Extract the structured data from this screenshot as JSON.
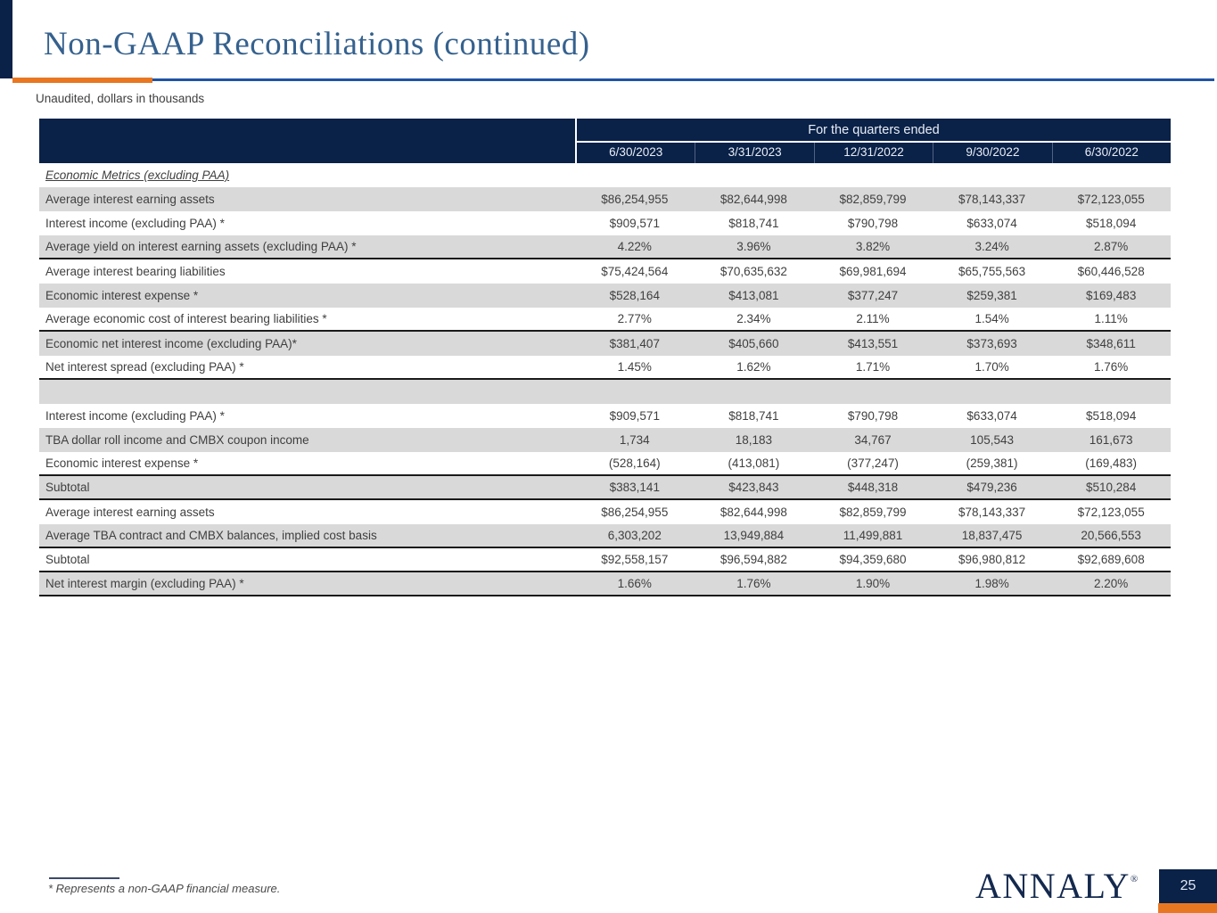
{
  "slide": {
    "title": "Non-GAAP Reconciliations (continued)",
    "subtitle": "Unaudited, dollars in thousands",
    "footnote": "* Represents a non-GAAP financial measure.",
    "logo_text": "ANNALY",
    "logo_mark": "®",
    "page_number": "25"
  },
  "colors": {
    "navy": "#0a2148",
    "orange": "#e87722",
    "title_blue": "#35618e",
    "row_gray": "#d9d9d9",
    "body_text": "#3f3f3f",
    "rule_blue": "#2053a4"
  },
  "table": {
    "group_header": "For the quarters ended",
    "columns": [
      "6/30/2023",
      "3/31/2023",
      "12/31/2022",
      "9/30/2022",
      "6/30/2022"
    ],
    "rows": [
      {
        "type": "section",
        "label": "Economic Metrics (excluding PAA)",
        "values": [
          "",
          "",
          "",
          "",
          ""
        ],
        "shade": "white",
        "divider_below": false
      },
      {
        "type": "data",
        "label": "Average interest earning assets",
        "values": [
          "$86,254,955",
          "$82,644,998",
          "$82,859,799",
          "$78,143,337",
          "$72,123,055"
        ],
        "shade": "gray",
        "divider_below": false
      },
      {
        "type": "data",
        "label": "Interest income (excluding PAA) *",
        "values": [
          "$909,571",
          "$818,741",
          "$790,798",
          "$633,074",
          "$518,094"
        ],
        "shade": "white",
        "divider_below": false
      },
      {
        "type": "data",
        "label": "Average yield on interest earning assets (excluding PAA) *",
        "values": [
          "4.22%",
          "3.96%",
          "3.82%",
          "3.24%",
          "2.87%"
        ],
        "shade": "gray",
        "divider_below": true
      },
      {
        "type": "data",
        "label": "Average interest bearing liabilities",
        "values": [
          "$75,424,564",
          "$70,635,632",
          "$69,981,694",
          "$65,755,563",
          "$60,446,528"
        ],
        "shade": "white",
        "divider_below": false
      },
      {
        "type": "data",
        "label": "Economic interest expense *",
        "values": [
          "$528,164",
          "$413,081",
          "$377,247",
          "$259,381",
          "$169,483"
        ],
        "shade": "gray",
        "divider_below": false
      },
      {
        "type": "data",
        "label": "Average economic cost of interest bearing liabilities *",
        "values": [
          "2.77%",
          "2.34%",
          "2.11%",
          "1.54%",
          "1.11%"
        ],
        "shade": "white",
        "divider_below": true
      },
      {
        "type": "data",
        "label": "Economic net interest income (excluding PAA)*",
        "values": [
          "$381,407",
          "$405,660",
          "$413,551",
          "$373,693",
          "$348,611"
        ],
        "shade": "gray",
        "divider_below": false
      },
      {
        "type": "data",
        "label": "Net interest spread (excluding PAA) *",
        "values": [
          "1.45%",
          "1.62%",
          "1.71%",
          "1.70%",
          "1.76%"
        ],
        "shade": "white",
        "divider_below": true
      },
      {
        "type": "spacer",
        "label": "",
        "values": [
          "",
          "",
          "",
          "",
          ""
        ],
        "shade": "gray",
        "divider_below": false
      },
      {
        "type": "data",
        "label": "Interest income (excluding PAA) *",
        "values": [
          "$909,571",
          "$818,741",
          "$790,798",
          "$633,074",
          "$518,094"
        ],
        "shade": "white",
        "divider_below": false
      },
      {
        "type": "data",
        "label": "TBA dollar roll income and CMBX coupon income",
        "values": [
          "1,734",
          "18,183",
          "34,767",
          "105,543",
          "161,673"
        ],
        "shade": "gray",
        "divider_below": false
      },
      {
        "type": "data",
        "label": "Economic interest expense *",
        "values": [
          "(528,164)",
          "(413,081)",
          "(377,247)",
          "(259,381)",
          "(169,483)"
        ],
        "shade": "white",
        "divider_below": true
      },
      {
        "type": "data",
        "label": "Subtotal",
        "values": [
          "$383,141",
          "$423,843",
          "$448,318",
          "$479,236",
          "$510,284"
        ],
        "shade": "gray",
        "divider_below": true
      },
      {
        "type": "data",
        "label": "Average interest earning assets",
        "values": [
          "$86,254,955",
          "$82,644,998",
          "$82,859,799",
          "$78,143,337",
          "$72,123,055"
        ],
        "shade": "white",
        "divider_below": false
      },
      {
        "type": "data",
        "label": "Average TBA contract and CMBX balances, implied cost basis",
        "values": [
          "6,303,202",
          "13,949,884",
          "11,499,881",
          "18,837,475",
          "20,566,553"
        ],
        "shade": "gray",
        "divider_below": true
      },
      {
        "type": "data",
        "label": "Subtotal",
        "values": [
          "$92,558,157",
          "$96,594,882",
          "$94,359,680",
          "$96,980,812",
          "$92,689,608"
        ],
        "shade": "white",
        "divider_below": true
      },
      {
        "type": "data",
        "label": "Net interest margin (excluding PAA) *",
        "values": [
          "1.66%",
          "1.76%",
          "1.90%",
          "1.98%",
          "2.20%"
        ],
        "shade": "gray",
        "divider_below": true
      }
    ]
  }
}
